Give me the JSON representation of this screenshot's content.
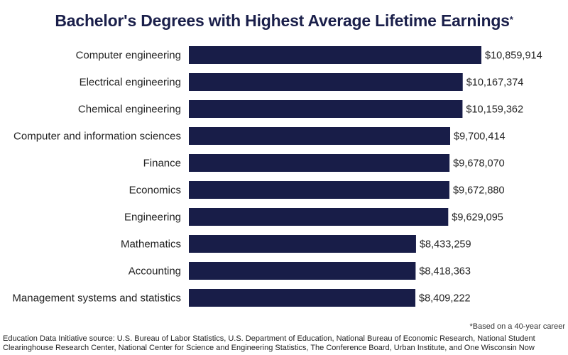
{
  "title": "Bachelor's Degrees with Highest Average Lifetime Earnings",
  "title_mark": "*",
  "footnote": "*Based on a 40-year career",
  "source": "Education Data Initiative source: U.S. Bureau of Labor Statistics, U.S. Department of Education, National Bureau of Economic Research, National Student Clearinghouse Research Center, National Center for Science and Engineering Statistics, The Conference Board, Urban Institute, and One Wisconsin Now",
  "colors": {
    "bar": "#181d48",
    "title": "#1a1f4a"
  },
  "chart_data": {
    "type": "bar",
    "orientation": "horizontal",
    "categories": [
      "Computer engineering",
      "Electrical engineering",
      "Chemical engineering",
      "Computer and information sciences",
      "Finance",
      "Economics",
      "Engineering",
      "Mathematics",
      "Accounting",
      "Management systems and statistics"
    ],
    "values": [
      10859914,
      10167374,
      10159362,
      9700414,
      9678070,
      9672880,
      9629095,
      8433259,
      8418363,
      8409222
    ],
    "value_labels": [
      "$10,859,914",
      "$10,167,374",
      "$10,159,362",
      "$9,700,414",
      "$9,678,070",
      "$9,672,880",
      "$9,629,095",
      "$8,433,259",
      "$8,418,363",
      "$8,409,222"
    ],
    "xlim": [
      0,
      10859914
    ],
    "grid": false,
    "legend": "none"
  }
}
